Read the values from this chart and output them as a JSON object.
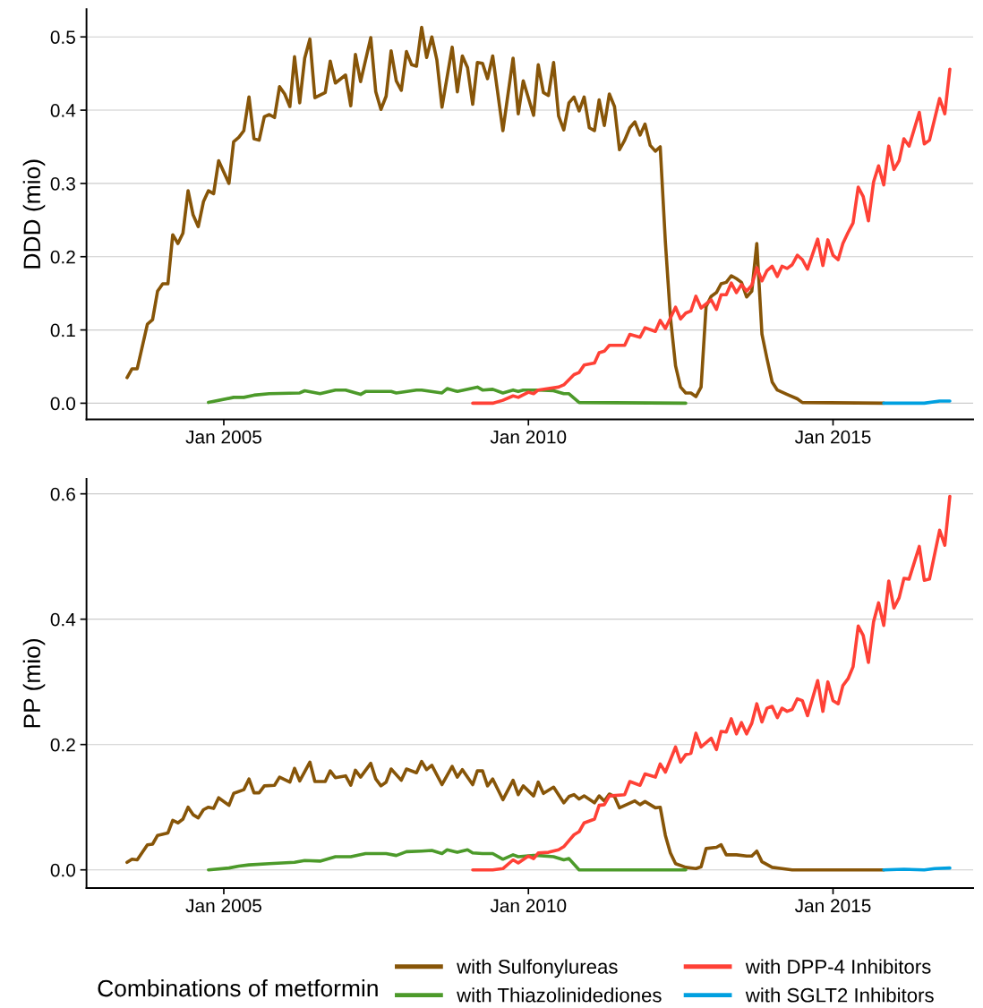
{
  "chart_data": [
    {
      "type": "line",
      "ylabel": "DDD (mio)",
      "xlim": [
        "2002-10-01",
        "2017-04-20"
      ],
      "ylim": [
        -0.022,
        0.538
      ],
      "xticks": [
        {
          "value": "2005-01",
          "label": "Jan 2005"
        },
        {
          "value": "2010-01",
          "label": "Jan 2010"
        },
        {
          "value": "2015-01",
          "label": "Jan 2015"
        }
      ],
      "yticks": [
        {
          "value": 0,
          "label": "0.0"
        },
        0.1,
        0.2,
        0.3,
        0.4,
        0.5
      ],
      "grid": "y",
      "legend": false,
      "marker": "none",
      "line_style": "solid",
      "series": [
        {
          "color": "#875508",
          "x": [
            "2003-06",
            "2003-07",
            "2003-08",
            "2003-10",
            "2003-11",
            "2003-12",
            "2004-01",
            "2004-02",
            "2004-03",
            "2004-04",
            "2004-05",
            "2004-06",
            "2004-07",
            "2004-08",
            "2004-09",
            "2004-10",
            "2004-11",
            "2004-12",
            "2005-02",
            "2005-03",
            "2005-04",
            "2005-05",
            "2005-06",
            "2005-07",
            "2005-08",
            "2005-09",
            "2005-10",
            "2005-11",
            "2005-12",
            "2006-01",
            "2006-02",
            "2006-03",
            "2006-04",
            "2006-05",
            "2006-06",
            "2006-07",
            "2006-09",
            "2006-10",
            "2006-11",
            "2007-01",
            "2007-02",
            "2007-03",
            "2007-04",
            "2007-06",
            "2007-07",
            "2007-08",
            "2007-09",
            "2007-10",
            "2007-11",
            "2007-12",
            "2008-01",
            "2008-02",
            "2008-03",
            "2008-04",
            "2008-05",
            "2008-06",
            "2008-07",
            "2008-08",
            "2008-10",
            "2008-11",
            "2008-12",
            "2009-01",
            "2009-02",
            "2009-03",
            "2009-04",
            "2009-05",
            "2009-06",
            "2009-08",
            "2009-10",
            "2009-11",
            "2009-12",
            "2010-02",
            "2010-03",
            "2010-04",
            "2010-05",
            "2010-06",
            "2010-07",
            "2010-08",
            "2010-09",
            "2010-10",
            "2010-11",
            "2010-12",
            "2011-01",
            "2011-02",
            "2011-03",
            "2011-04",
            "2011-05",
            "2011-06",
            "2011-07",
            "2011-08",
            "2011-09",
            "2011-10",
            "2011-11",
            "2011-12",
            "2012-01",
            "2012-02",
            "2012-03",
            "2012-04",
            "2012-05",
            "2012-06",
            "2012-07",
            "2012-08",
            "2012-09",
            "2012-10",
            "2012-11",
            "2012-12",
            "2013-01",
            "2013-02",
            "2013-03",
            "2013-04",
            "2013-05",
            "2013-06",
            "2013-07",
            "2013-08",
            "2013-09",
            "2013-10",
            "2013-11",
            "2013-12",
            "2014-01",
            "2014-02",
            "2014-04",
            "2014-06",
            "2014-07",
            "2015-11"
          ],
          "values": [
            0.035,
            0.047,
            0.047,
            0.108,
            0.114,
            0.153,
            0.163,
            0.163,
            0.23,
            0.218,
            0.232,
            0.29,
            0.257,
            0.241,
            0.275,
            0.29,
            0.286,
            0.331,
            0.3,
            0.357,
            0.363,
            0.372,
            0.418,
            0.361,
            0.359,
            0.391,
            0.394,
            0.39,
            0.432,
            0.422,
            0.405,
            0.473,
            0.41,
            0.471,
            0.497,
            0.417,
            0.424,
            0.467,
            0.437,
            0.448,
            0.406,
            0.476,
            0.439,
            0.499,
            0.425,
            0.401,
            0.419,
            0.481,
            0.44,
            0.427,
            0.48,
            0.462,
            0.46,
            0.513,
            0.472,
            0.5,
            0.469,
            0.404,
            0.486,
            0.425,
            0.474,
            0.458,
            0.408,
            0.465,
            0.464,
            0.443,
            0.474,
            0.372,
            0.471,
            0.395,
            0.44,
            0.393,
            0.462,
            0.424,
            0.42,
            0.465,
            0.392,
            0.373,
            0.41,
            0.418,
            0.399,
            0.418,
            0.376,
            0.372,
            0.414,
            0.379,
            0.422,
            0.405,
            0.346,
            0.359,
            0.376,
            0.384,
            0.366,
            0.381,
            0.352,
            0.344,
            0.35,
            0.22,
            0.118,
            0.051,
            0.022,
            0.014,
            0.014,
            0.009,
            0.022,
            0.132,
            0.146,
            0.151,
            0.163,
            0.165,
            0.174,
            0.17,
            0.165,
            0.145,
            0.153,
            0.218,
            0.094,
            0.061,
            0.029,
            0.018,
            0.012,
            0.006,
            0.001,
            0.0
          ]
        },
        {
          "color": "#4c9a2a",
          "x": [
            "2004-10",
            "2005-03",
            "2005-05",
            "2005-07",
            "2005-10",
            "2006-04",
            "2006-05",
            "2006-08",
            "2006-11",
            "2007-01",
            "2007-04",
            "2007-05",
            "2007-10",
            "2007-11",
            "2008-03",
            "2008-04",
            "2008-08",
            "2008-09",
            "2008-11",
            "2009-03",
            "2009-04",
            "2009-06",
            "2009-08",
            "2009-10",
            "2009-11",
            "2009-12",
            "2010-03",
            "2010-06",
            "2010-08",
            "2010-09",
            "2010-11",
            "2012-08"
          ],
          "values": [
            0.001,
            0.008,
            0.008,
            0.011,
            0.013,
            0.014,
            0.017,
            0.013,
            0.018,
            0.018,
            0.012,
            0.016,
            0.016,
            0.014,
            0.018,
            0.018,
            0.014,
            0.02,
            0.016,
            0.022,
            0.018,
            0.019,
            0.014,
            0.018,
            0.016,
            0.018,
            0.018,
            0.017,
            0.013,
            0.013,
            0.001,
            0.0
          ]
        },
        {
          "color": "#ff4136",
          "x": [
            "2009-02",
            "2009-06",
            "2009-08",
            "2009-10",
            "2009-11",
            "2010-01",
            "2010-02",
            "2010-03",
            "2010-05",
            "2010-07",
            "2010-08",
            "2010-10",
            "2010-11",
            "2010-12",
            "2011-02",
            "2011-03",
            "2011-04",
            "2011-05",
            "2011-08",
            "2011-09",
            "2011-11",
            "2011-12",
            "2012-02",
            "2012-03",
            "2012-04",
            "2012-06",
            "2012-07",
            "2012-08",
            "2012-09",
            "2012-10",
            "2012-11",
            "2013-01",
            "2013-02",
            "2013-03",
            "2013-04",
            "2013-05",
            "2013-06",
            "2013-07",
            "2013-08",
            "2013-09",
            "2013-10",
            "2013-11",
            "2013-12",
            "2014-01",
            "2014-02",
            "2014-03",
            "2014-04",
            "2014-05",
            "2014-06",
            "2014-07",
            "2014-08",
            "2014-10",
            "2014-11",
            "2014-12",
            "2015-01",
            "2015-02",
            "2015-03",
            "2015-04",
            "2015-05",
            "2015-06",
            "2015-07",
            "2015-08",
            "2015-09",
            "2015-10",
            "2015-11",
            "2015-12",
            "2016-01",
            "2016-02",
            "2016-03",
            "2016-04",
            "2016-06",
            "2016-07",
            "2016-08",
            "2016-10",
            "2016-11",
            "2016-12"
          ],
          "values": [
            0.0,
            0.0,
            0.004,
            0.01,
            0.008,
            0.015,
            0.013,
            0.018,
            0.02,
            0.022,
            0.025,
            0.039,
            0.042,
            0.052,
            0.055,
            0.069,
            0.071,
            0.079,
            0.079,
            0.094,
            0.09,
            0.103,
            0.098,
            0.113,
            0.102,
            0.131,
            0.115,
            0.123,
            0.126,
            0.146,
            0.13,
            0.141,
            0.128,
            0.148,
            0.148,
            0.164,
            0.151,
            0.162,
            0.153,
            0.161,
            0.185,
            0.167,
            0.181,
            0.187,
            0.173,
            0.187,
            0.184,
            0.189,
            0.202,
            0.196,
            0.183,
            0.224,
            0.188,
            0.223,
            0.202,
            0.196,
            0.218,
            0.233,
            0.246,
            0.295,
            0.282,
            0.249,
            0.302,
            0.324,
            0.298,
            0.351,
            0.319,
            0.331,
            0.361,
            0.351,
            0.397,
            0.354,
            0.359,
            0.416,
            0.395,
            0.456
          ]
        },
        {
          "color": "#00a0e0",
          "x": [
            "2015-11",
            "2016-07",
            "2016-10",
            "2016-12"
          ],
          "values": [
            0.0,
            0.0,
            0.003,
            0.003
          ]
        }
      ]
    },
    {
      "type": "line",
      "ylabel": "PP (mio)",
      "legend_title": "Combinations of metformin",
      "xlim": [
        "2002-10-01",
        "2017-04-20"
      ],
      "ylim": [
        -0.029,
        0.624
      ],
      "xticks": [
        {
          "value": "2005-01",
          "label": "Jan 2005"
        },
        {
          "value": "2010-01",
          "label": "Jan 2010"
        },
        {
          "value": "2015-01",
          "label": "Jan 2015"
        }
      ],
      "yticks": [
        {
          "value": 0,
          "label": "0.0"
        },
        0.2,
        0.4,
        0.6
      ],
      "grid": "y",
      "legend": "bottom",
      "marker": "none",
      "line_style": "solid",
      "series": [
        {
          "name": "with Sulfonylureas",
          "color": "#875508",
          "x": [
            "2003-06",
            "2003-07",
            "2003-08",
            "2003-10",
            "2003-11",
            "2003-12",
            "2004-02",
            "2004-03",
            "2004-04",
            "2004-05",
            "2004-06",
            "2004-07",
            "2004-08",
            "2004-09",
            "2004-10",
            "2004-11",
            "2004-12",
            "2005-02",
            "2005-03",
            "2005-05",
            "2005-06",
            "2005-07",
            "2005-08",
            "2005-09",
            "2005-11",
            "2005-12",
            "2006-02",
            "2006-03",
            "2006-04",
            "2006-06",
            "2006-07",
            "2006-09",
            "2006-10",
            "2006-11",
            "2007-01",
            "2007-02",
            "2007-03",
            "2007-04",
            "2007-06",
            "2007-07",
            "2007-08",
            "2007-09",
            "2007-10",
            "2007-12",
            "2008-01",
            "2008-03",
            "2008-04",
            "2008-05",
            "2008-06",
            "2008-08",
            "2008-10",
            "2008-11",
            "2008-12",
            "2009-02",
            "2009-03",
            "2009-04",
            "2009-05",
            "2009-06",
            "2009-08",
            "2009-10",
            "2009-11",
            "2009-12",
            "2010-02",
            "2010-03",
            "2010-04",
            "2010-06",
            "2010-08",
            "2010-09",
            "2010-10",
            "2010-11",
            "2010-12",
            "2011-02",
            "2011-03",
            "2011-04",
            "2011-05",
            "2011-06",
            "2011-07",
            "2011-10",
            "2011-11",
            "2011-12",
            "2012-02",
            "2012-03",
            "2012-04",
            "2012-05",
            "2012-06",
            "2012-08",
            "2012-10",
            "2012-11",
            "2012-12",
            "2013-02",
            "2013-03",
            "2013-04",
            "2013-06",
            "2013-08",
            "2013-09",
            "2013-10",
            "2013-11",
            "2014-01",
            "2014-03",
            "2014-05",
            "2015-11"
          ],
          "values": [
            0.012,
            0.017,
            0.016,
            0.04,
            0.041,
            0.055,
            0.059,
            0.079,
            0.075,
            0.081,
            0.1,
            0.088,
            0.083,
            0.096,
            0.1,
            0.098,
            0.115,
            0.103,
            0.122,
            0.128,
            0.145,
            0.123,
            0.123,
            0.134,
            0.135,
            0.148,
            0.14,
            0.162,
            0.142,
            0.172,
            0.141,
            0.141,
            0.158,
            0.147,
            0.15,
            0.135,
            0.159,
            0.148,
            0.17,
            0.145,
            0.134,
            0.14,
            0.161,
            0.143,
            0.161,
            0.155,
            0.173,
            0.16,
            0.167,
            0.136,
            0.165,
            0.148,
            0.16,
            0.136,
            0.158,
            0.158,
            0.134,
            0.145,
            0.112,
            0.143,
            0.12,
            0.134,
            0.118,
            0.14,
            0.122,
            0.132,
            0.107,
            0.117,
            0.12,
            0.113,
            0.118,
            0.107,
            0.118,
            0.11,
            0.121,
            0.117,
            0.099,
            0.11,
            0.104,
            0.109,
            0.099,
            0.1,
            0.055,
            0.027,
            0.01,
            0.004,
            0.002,
            0.005,
            0.034,
            0.036,
            0.04,
            0.024,
            0.024,
            0.022,
            0.022,
            0.03,
            0.013,
            0.004,
            0.002,
            0.0,
            0.0
          ]
        },
        {
          "name": "with Thiazolinidediones",
          "color": "#4c9a2a",
          "x": [
            "2004-10",
            "2005-02",
            "2005-04",
            "2005-06",
            "2005-10",
            "2006-03",
            "2006-05",
            "2006-08",
            "2006-11",
            "2007-02",
            "2007-05",
            "2007-09",
            "2007-11",
            "2008-01",
            "2008-04",
            "2008-06",
            "2008-08",
            "2008-09",
            "2008-11",
            "2009-01",
            "2009-02",
            "2009-04",
            "2009-06",
            "2009-08",
            "2009-10",
            "2009-11",
            "2010-02",
            "2010-03",
            "2010-06",
            "2010-08",
            "2010-09",
            "2010-11",
            "2012-08"
          ],
          "values": [
            0.0,
            0.003,
            0.006,
            0.008,
            0.01,
            0.012,
            0.015,
            0.014,
            0.021,
            0.021,
            0.026,
            0.026,
            0.023,
            0.029,
            0.03,
            0.031,
            0.026,
            0.032,
            0.028,
            0.032,
            0.027,
            0.026,
            0.026,
            0.017,
            0.024,
            0.021,
            0.023,
            0.023,
            0.021,
            0.016,
            0.018,
            0.0,
            0.0
          ]
        },
        {
          "name": "with DPP-4 Inhibitors",
          "color": "#ff4136",
          "x": [
            "2009-02",
            "2009-06",
            "2009-08",
            "2009-10",
            "2009-11",
            "2010-01",
            "2010-02",
            "2010-03",
            "2010-05",
            "2010-07",
            "2010-08",
            "2010-10",
            "2010-11",
            "2010-12",
            "2011-02",
            "2011-03",
            "2011-04",
            "2011-05",
            "2011-08",
            "2011-09",
            "2011-11",
            "2011-12",
            "2012-02",
            "2012-03",
            "2012-04",
            "2012-06",
            "2012-07",
            "2012-08",
            "2012-09",
            "2012-10",
            "2012-11",
            "2013-01",
            "2013-02",
            "2013-03",
            "2013-04",
            "2013-05",
            "2013-06",
            "2013-07",
            "2013-08",
            "2013-09",
            "2013-10",
            "2013-11",
            "2013-12",
            "2014-01",
            "2014-02",
            "2014-03",
            "2014-04",
            "2014-05",
            "2014-06",
            "2014-07",
            "2014-08",
            "2014-10",
            "2014-11",
            "2014-12",
            "2015-01",
            "2015-02",
            "2015-03",
            "2015-04",
            "2015-05",
            "2015-06",
            "2015-07",
            "2015-08",
            "2015-09",
            "2015-10",
            "2015-11",
            "2015-12",
            "2016-01",
            "2016-02",
            "2016-03",
            "2016-04",
            "2016-06",
            "2016-07",
            "2016-08",
            "2016-10",
            "2016-11",
            "2016-12"
          ],
          "values": [
            0.0,
            0.0,
            0.002,
            0.016,
            0.011,
            0.022,
            0.018,
            0.027,
            0.028,
            0.032,
            0.037,
            0.056,
            0.061,
            0.075,
            0.081,
            0.103,
            0.104,
            0.118,
            0.12,
            0.141,
            0.135,
            0.153,
            0.148,
            0.169,
            0.156,
            0.196,
            0.172,
            0.184,
            0.186,
            0.218,
            0.196,
            0.21,
            0.192,
            0.221,
            0.22,
            0.241,
            0.217,
            0.235,
            0.217,
            0.234,
            0.265,
            0.236,
            0.258,
            0.261,
            0.243,
            0.258,
            0.253,
            0.256,
            0.273,
            0.27,
            0.246,
            0.302,
            0.253,
            0.3,
            0.27,
            0.265,
            0.294,
            0.305,
            0.324,
            0.389,
            0.374,
            0.331,
            0.396,
            0.426,
            0.39,
            0.461,
            0.418,
            0.434,
            0.465,
            0.464,
            0.516,
            0.462,
            0.464,
            0.542,
            0.518,
            0.596
          ]
        },
        {
          "name": "with SGLT2 Inhibitors",
          "color": "#00a0e0",
          "x": [
            "2015-11",
            "2016-03",
            "2016-07",
            "2016-09",
            "2016-12"
          ],
          "values": [
            0.0,
            0.001,
            0.0,
            0.002,
            0.003
          ]
        }
      ]
    }
  ]
}
